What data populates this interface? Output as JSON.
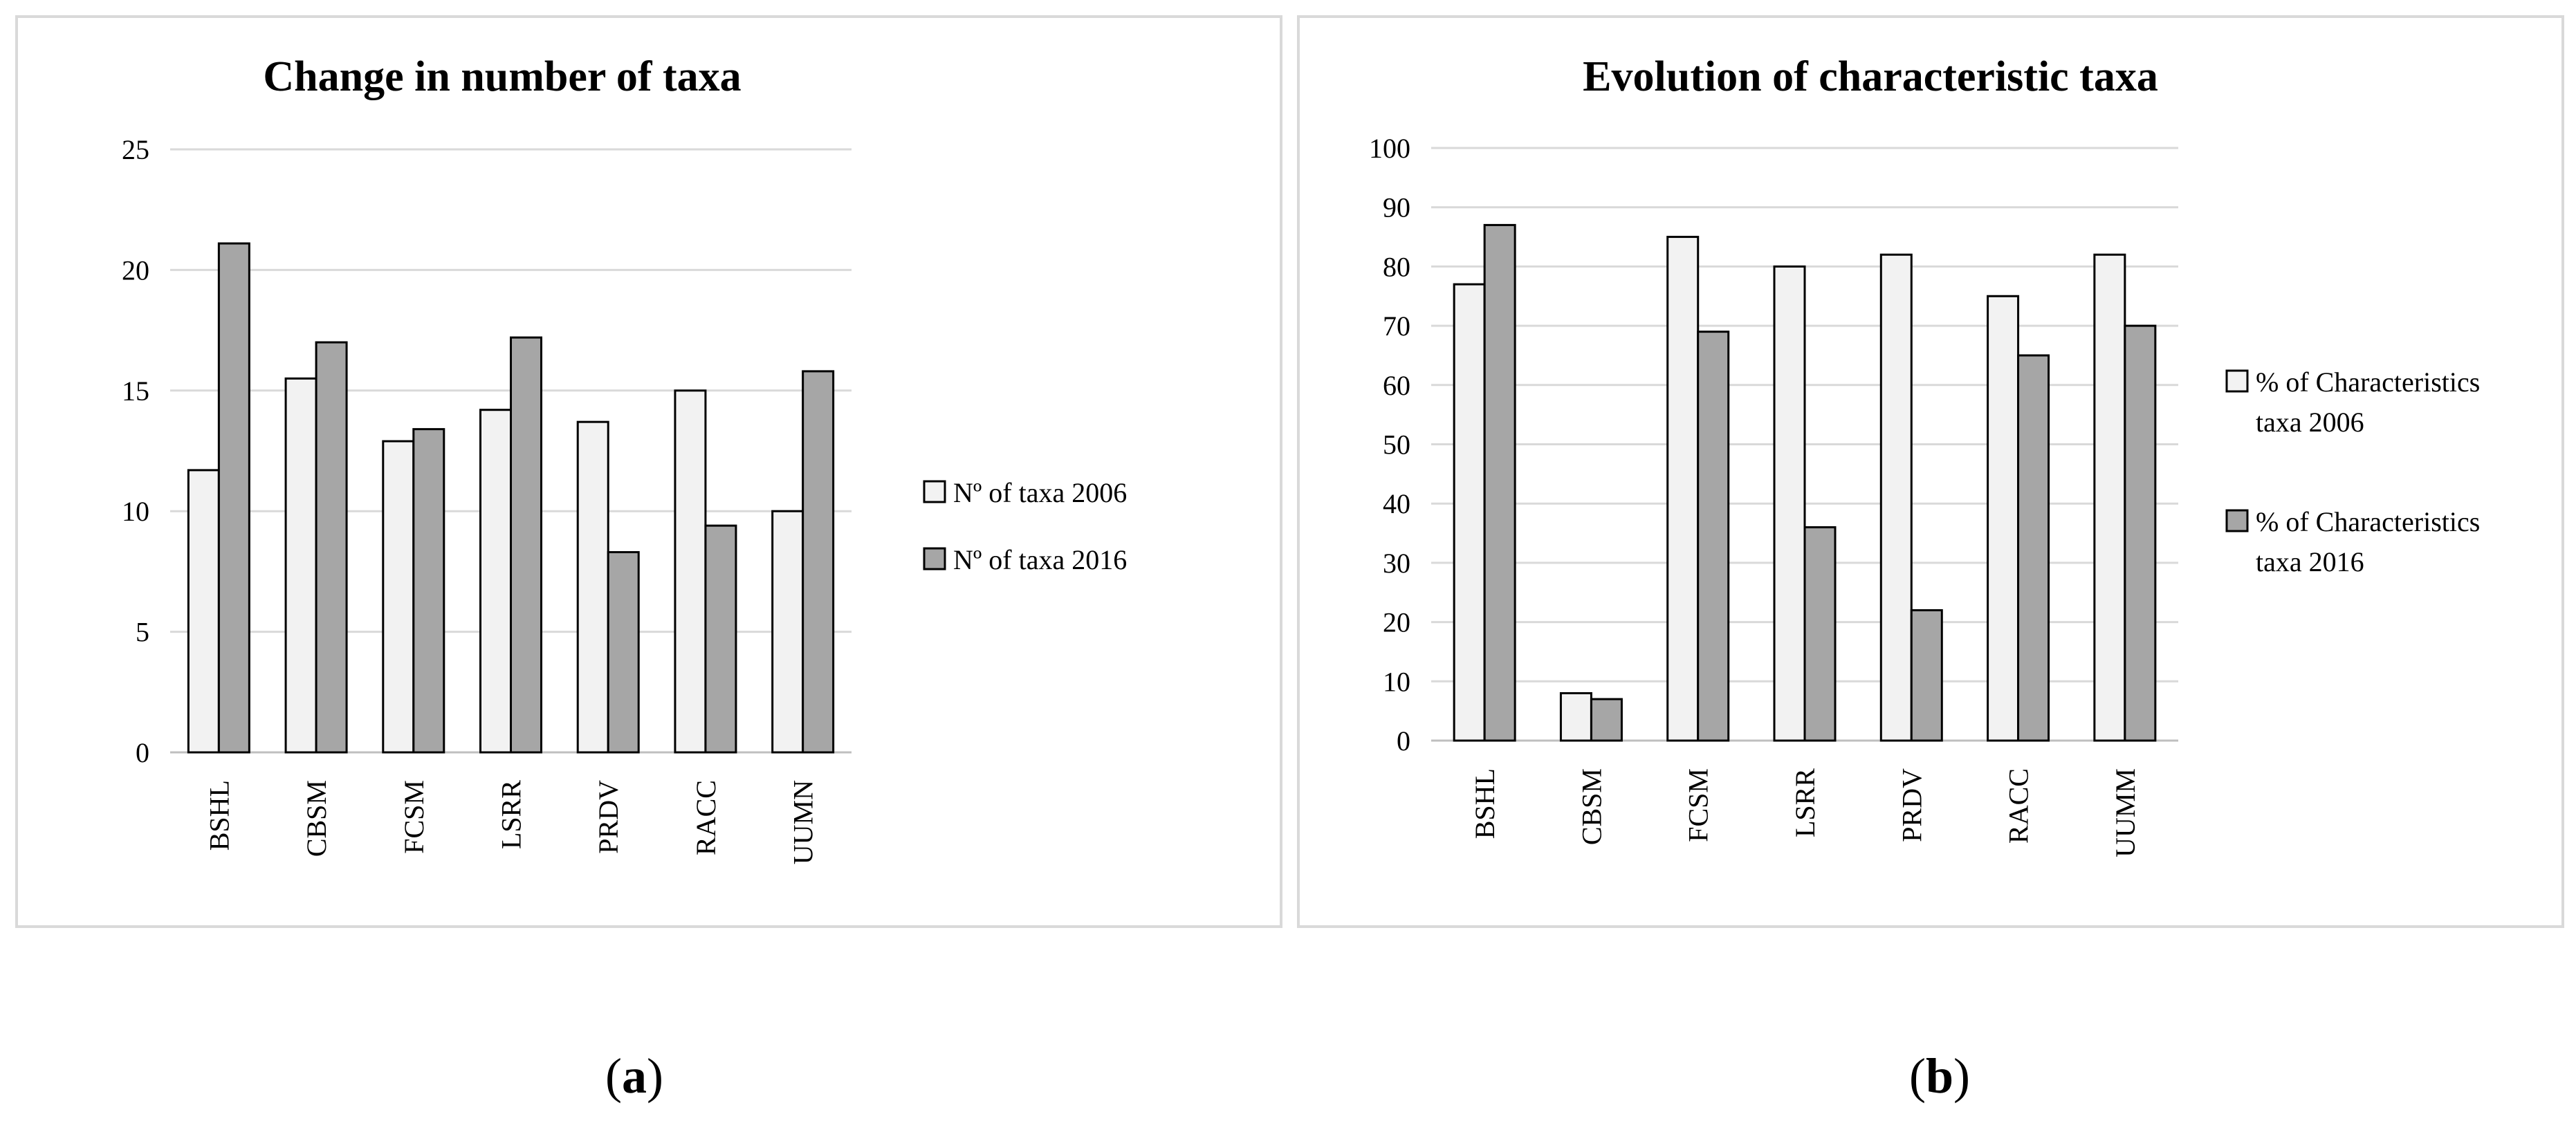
{
  "chart_data": [
    {
      "type": "bar",
      "title": "Change in number of taxa",
      "xlabel": "",
      "ylabel": "",
      "ylim": [
        0,
        25
      ],
      "yticks": [
        "0",
        "5",
        "10",
        "15",
        "20",
        "25"
      ],
      "categories": [
        "BSHL",
        "CBSM",
        "FCSM",
        "LSRR",
        "PRDV",
        "RACC",
        "UUMN"
      ],
      "series": [
        {
          "name": "Nº of taxa 2006",
          "color": "#f2f2f2",
          "values": [
            11.7,
            15.5,
            12.9,
            14.2,
            13.7,
            15.0,
            10.0
          ]
        },
        {
          "name": "Nº of taxa 2016",
          "color": "#a6a6a6",
          "values": [
            21.1,
            17.0,
            13.4,
            17.2,
            8.3,
            9.4,
            15.8
          ]
        }
      ],
      "legend_position": "right"
    },
    {
      "type": "bar",
      "title": "Evolution of characteristic taxa",
      "xlabel": "",
      "ylabel": "",
      "ylim": [
        0,
        100
      ],
      "yticks": [
        "0",
        "10",
        "20",
        "30",
        "40",
        "50",
        "60",
        "70",
        "80",
        "90",
        "100"
      ],
      "categories": [
        "BSHL",
        "CBSM",
        "FCSM",
        "LSRR",
        "PRDV",
        "RACC",
        "UUMM"
      ],
      "series": [
        {
          "name": "% of Characteristics taxa 2006",
          "color": "#f2f2f2",
          "values": [
            77,
            8,
            85,
            80,
            82,
            75,
            82
          ]
        },
        {
          "name": "% of Characteristics taxa 2016",
          "color": "#a6a6a6",
          "values": [
            87,
            7,
            69,
            36,
            22,
            65,
            70
          ]
        }
      ],
      "legend_position": "right"
    }
  ],
  "figure": {
    "label_a": "a",
    "label_b": "b"
  }
}
